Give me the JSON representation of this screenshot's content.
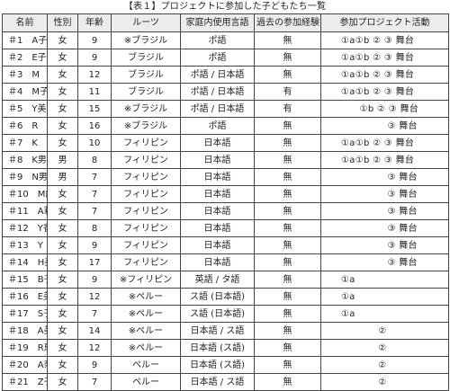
{
  "caption": "【表１】プロジェクトに参加した子どもたち一覧",
  "headers": [
    "名前",
    "性別",
    "年齢",
    "ルーツ",
    "家庭内使用言語",
    "過去の参加経験",
    "参加プロジェクト活動"
  ],
  "rows": [
    [
      "＃1　A子",
      "女",
      "9",
      "※ブラジル",
      "ポ語",
      "無",
      "①a①b ② ③ 舞台"
    ],
    [
      "＃2　E子",
      "女",
      "9",
      "ブラジル",
      "ポ語",
      "無",
      "①a①b ② ③ 舞台"
    ],
    [
      "＃3　M",
      "女",
      "12",
      "ブラジル",
      "ポ語 / 日本語",
      "無",
      "①a①b ② ③ 舞台"
    ],
    [
      "＃4　M子",
      "女",
      "11",
      "ブラジル",
      "ポ語 / 日本語",
      "有",
      "①a①b ② ③ 舞台"
    ],
    [
      "＃5　Y美",
      "女",
      "15",
      "※ブラジル",
      "ポ語 / 日本語",
      "有",
      "　　①b ② ③ 舞台"
    ],
    [
      "＃6　R",
      "女",
      "16",
      "※ブラジル",
      "ポ語",
      "無",
      "　　　　　③ 舞台"
    ],
    [
      "＃7　K",
      "女",
      "10",
      "フィリピン",
      "日本語",
      "無",
      "①a①b ② ③ 舞台"
    ],
    [
      "＃8　K男",
      "男",
      "8",
      "フィリピン",
      "日本語",
      "無",
      "①a①b ② ③ 舞台"
    ],
    [
      "＃9　N男",
      "男",
      "7",
      "フィリピン",
      "日本語",
      "無",
      "　　　　　③ 舞台"
    ],
    [
      "＃10　M紀",
      "女",
      "7",
      "フィリピン",
      "日本語",
      "無",
      "　　　　　③ 舞台"
    ],
    [
      "＃11　A莉",
      "女",
      "7",
      "フィリピン",
      "日本語",
      "無",
      "　　　　　③ 舞台"
    ],
    [
      "＃12　Y香",
      "女",
      "8",
      "フィリピン",
      "日本語",
      "無",
      "　　　　　③ 舞台"
    ],
    [
      "＃13　Y",
      "女",
      "9",
      "フィリピン",
      "日本語",
      "無",
      "　　　　　③ 舞台"
    ],
    [
      "＃14　H美",
      "女",
      "17",
      "フィリピン",
      "日本語",
      "無",
      "　　　　　③ 舞台"
    ],
    [
      "＃15　B子",
      "女",
      "9",
      "※フィリピン",
      "英語 / タ語",
      "無",
      "①a"
    ],
    [
      "＃16　E美",
      "女",
      "12",
      "※ペルー",
      "ス語 (日本語)",
      "無",
      "①a"
    ],
    [
      "＃17　S子",
      "女",
      "7",
      "※ペルー",
      "ス語 (日本語)",
      "無",
      "①a"
    ],
    [
      "＃18　A美",
      "女",
      "14",
      "※ペルー",
      "日本語 / ス語",
      "無",
      "　　　　②"
    ],
    [
      "＃19　R恵",
      "女",
      "12",
      "※ペルー",
      "日本語 (ス語)",
      "無",
      "　　　　②"
    ],
    [
      "＃20　A奈",
      "女",
      "9",
      "ペルー",
      "日本語 (ス語)",
      "無",
      "　　　　②"
    ],
    [
      "＃21　Z子",
      "女",
      "7",
      "ペルー",
      "日本語 / ス語",
      "無",
      "　　　　②"
    ]
  ]
}
